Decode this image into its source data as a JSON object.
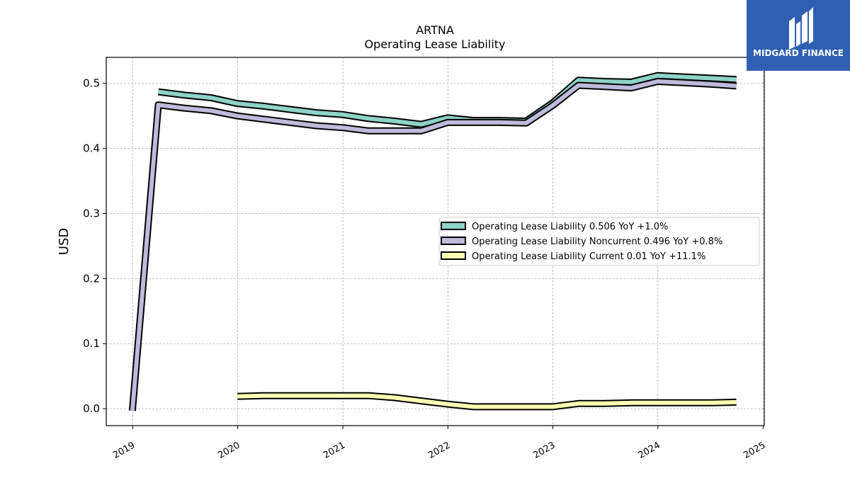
{
  "brand": {
    "name": "MIDGARD FINANCE",
    "color": "#2f5fb3"
  },
  "chart_data": {
    "type": "line",
    "title": "ARTNA",
    "subtitle": "Operating Lease Liability",
    "ylabel": "USD",
    "xlabel": "",
    "xlim": [
      "2018-10-01",
      "2025-01-05"
    ],
    "ylim": [
      -0.026,
      0.54
    ],
    "x_ticks": [
      "2019",
      "2020",
      "2021",
      "2022",
      "2023",
      "2024",
      "2025"
    ],
    "y_ticks": [
      "0.0",
      "0.1",
      "0.2",
      "0.3",
      "0.4",
      "0.5"
    ],
    "grid": true,
    "legend_position": "right",
    "series": [
      {
        "name": "Operating Lease Liability",
        "legend": "Operating Lease Liability  0.506 YoY +1.0%",
        "color": "#8dd3c7",
        "points": [
          [
            "2019-03-31",
            0.487
          ],
          [
            "2019-06-30",
            0.482
          ],
          [
            "2019-09-30",
            0.478
          ],
          [
            "2019-12-31",
            0.469
          ],
          [
            "2020-03-31",
            0.465
          ],
          [
            "2020-06-30",
            0.46
          ],
          [
            "2020-09-30",
            0.455
          ],
          [
            "2020-12-31",
            0.452
          ],
          [
            "2021-03-31",
            0.446
          ],
          [
            "2021-06-30",
            0.442
          ],
          [
            "2021-09-30",
            0.437
          ],
          [
            "2021-12-31",
            0.447
          ],
          [
            "2022-03-31",
            0.443
          ],
          [
            "2022-06-30",
            0.443
          ],
          [
            "2022-09-30",
            0.442
          ],
          [
            "2022-12-31",
            0.47
          ],
          [
            "2023-03-31",
            0.505
          ],
          [
            "2023-06-30",
            0.503
          ],
          [
            "2023-09-30",
            0.502
          ],
          [
            "2023-12-31",
            0.512
          ],
          [
            "2024-03-31",
            0.51
          ],
          [
            "2024-06-30",
            0.508
          ],
          [
            "2024-09-30",
            0.506
          ]
        ]
      },
      {
        "name": "Operating Lease Liability Noncurrent",
        "legend": "Operating Lease Liability Noncurrent  0.496 YoY +0.8%",
        "color": "#bebada",
        "points": [
          [
            "2018-12-31",
            -0.003
          ],
          [
            "2019-03-31",
            0.467
          ],
          [
            "2019-06-30",
            0.462
          ],
          [
            "2019-09-30",
            0.458
          ],
          [
            "2019-12-31",
            0.45
          ],
          [
            "2020-03-31",
            0.445
          ],
          [
            "2020-06-30",
            0.44
          ],
          [
            "2020-09-30",
            0.435
          ],
          [
            "2020-12-31",
            0.432
          ],
          [
            "2021-03-31",
            0.427
          ],
          [
            "2021-06-30",
            0.427
          ],
          [
            "2021-09-30",
            0.427
          ],
          [
            "2021-12-31",
            0.44
          ],
          [
            "2022-03-31",
            0.44
          ],
          [
            "2022-06-30",
            0.44
          ],
          [
            "2022-09-30",
            0.439
          ],
          [
            "2022-12-31",
            0.466
          ],
          [
            "2023-03-31",
            0.497
          ],
          [
            "2023-06-30",
            0.495
          ],
          [
            "2023-09-30",
            0.493
          ],
          [
            "2023-12-31",
            0.503
          ],
          [
            "2024-03-31",
            0.501
          ],
          [
            "2024-06-30",
            0.499
          ],
          [
            "2024-09-30",
            0.496
          ]
        ]
      },
      {
        "name": "Operating Lease Liability Current",
        "legend": "Operating Lease Liability Current  0.01 YoY +11.1%",
        "color": "#ffffb3",
        "points": [
          [
            "2019-12-31",
            0.019
          ],
          [
            "2020-03-31",
            0.02
          ],
          [
            "2020-06-30",
            0.02
          ],
          [
            "2020-09-30",
            0.02
          ],
          [
            "2020-12-31",
            0.02
          ],
          [
            "2021-03-31",
            0.02
          ],
          [
            "2021-06-30",
            0.017
          ],
          [
            "2021-09-30",
            0.012
          ],
          [
            "2021-12-31",
            0.007
          ],
          [
            "2022-03-31",
            0.003
          ],
          [
            "2022-06-30",
            0.003
          ],
          [
            "2022-09-30",
            0.003
          ],
          [
            "2022-12-31",
            0.003
          ],
          [
            "2023-03-31",
            0.008
          ],
          [
            "2023-06-30",
            0.008
          ],
          [
            "2023-09-30",
            0.009
          ],
          [
            "2023-12-31",
            0.009
          ],
          [
            "2024-03-31",
            0.009
          ],
          [
            "2024-06-30",
            0.009
          ],
          [
            "2024-09-30",
            0.01
          ]
        ]
      }
    ]
  }
}
